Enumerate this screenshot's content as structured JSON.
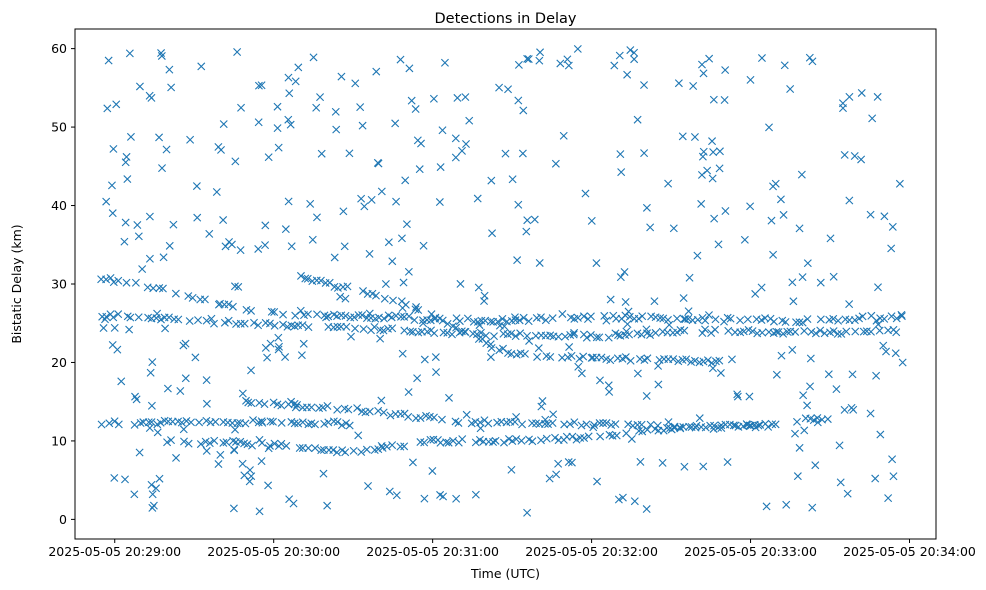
{
  "chart_data": {
    "type": "scatter",
    "title": "Detections in Delay",
    "xlabel": "Time (UTC)",
    "ylabel": "Bistatic Delay (km)",
    "marker": "x",
    "color": "#1f77b4",
    "grid": false,
    "legend": "none",
    "xlim": [
      "2025-05-05 20:28:45",
      "2025-05-05 20:34:10"
    ],
    "ylim": [
      -2.5,
      62.5
    ],
    "x_ticks": [
      "2025-05-05 20:29:00",
      "2025-05-05 20:30:00",
      "2025-05-05 20:31:00",
      "2025-05-05 20:32:00",
      "2025-05-05 20:33:00",
      "2025-05-05 20:34:00"
    ],
    "y_ticks": [
      0,
      10,
      20,
      30,
      40,
      50,
      60
    ],
    "track_segments": [
      {
        "t": [
          "2025-05-05 20:28:55",
          "2025-05-05 20:29:15",
          "2025-05-05 20:29:40",
          "2025-05-05 20:30:00"
        ],
        "delay": [
          30.8,
          29.5,
          27.5,
          26.2
        ]
      },
      {
        "t": [
          "2025-05-05 20:30:00",
          "2025-05-05 20:30:40",
          "2025-05-05 20:31:20",
          "2025-05-05 20:32:00",
          "2025-05-05 20:32:40",
          "2025-05-05 20:33:20",
          "2025-05-05 20:33:58"
        ],
        "delay": [
          26.2,
          25.8,
          25.3,
          25.8,
          25.6,
          25.3,
          25.9
        ]
      },
      {
        "t": [
          "2025-05-05 20:28:55",
          "2025-05-05 20:29:30",
          "2025-05-05 20:30:00",
          "2025-05-05 20:30:40",
          "2025-05-05 20:31:20",
          "2025-05-05 20:32:00",
          "2025-05-05 20:32:40",
          "2025-05-05 20:33:20",
          "2025-05-05 20:33:58"
        ],
        "delay": [
          26.0,
          25.5,
          24.8,
          24.3,
          23.6,
          23.3,
          24.0,
          23.8,
          24.0
        ]
      },
      {
        "t": [
          "2025-05-05 20:28:55",
          "2025-05-05 20:29:30",
          "2025-05-05 20:30:00",
          "2025-05-05 20:30:30"
        ],
        "delay": [
          12.0,
          12.5,
          12.4,
          12.2
        ]
      },
      {
        "t": [
          "2025-05-05 20:29:20",
          "2025-05-05 20:30:00",
          "2025-05-05 20:30:30",
          "2025-05-05 20:31:00",
          "2025-05-05 20:31:30",
          "2025-05-05 20:32:00",
          "2025-05-05 20:32:30",
          "2025-05-05 20:33:00",
          "2025-05-05 20:33:30"
        ],
        "delay": [
          10.0,
          9.5,
          8.5,
          10.0,
          10.0,
          10.5,
          11.5,
          12.0,
          13.0
        ]
      },
      {
        "t": [
          "2025-05-05 20:29:50",
          "2025-05-05 20:30:30",
          "2025-05-05 20:31:10",
          "2025-05-05 20:31:50",
          "2025-05-05 20:32:30",
          "2025-05-05 20:33:10"
        ],
        "delay": [
          15.0,
          14.0,
          12.5,
          12.2,
          11.8,
          12.0
        ]
      },
      {
        "t": [
          "2025-05-05 20:30:10",
          "2025-05-05 20:30:50",
          "2025-05-05 20:31:30",
          "2025-05-05 20:32:10",
          "2025-05-05 20:32:50"
        ],
        "delay": [
          31.0,
          27.5,
          21.0,
          20.5,
          20.0
        ]
      }
    ],
    "clutter": {
      "t_range": [
        "2025-05-05 20:28:55",
        "2025-05-05 20:33:58"
      ],
      "delay_range": [
        0.5,
        60
      ],
      "count": 460
    }
  }
}
